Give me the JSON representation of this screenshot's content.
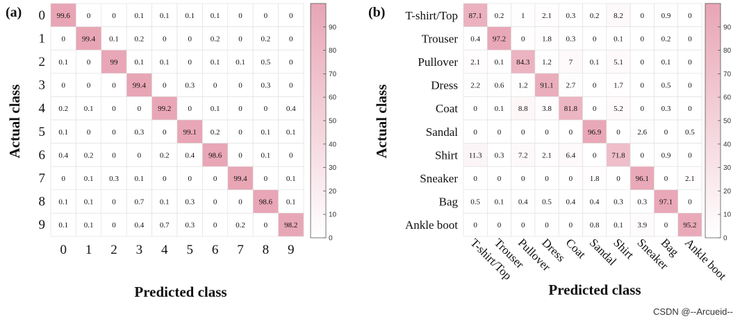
{
  "watermark": "CSDN @--Arcueid--",
  "colors": {
    "low": "#ffffff",
    "high": "#e8a5b5",
    "cell_border": "#dddddd",
    "axis": "#555555"
  },
  "chart_data": [
    {
      "type": "heatmap",
      "panel_label": "(a)",
      "xlabel": "Predicted class",
      "ylabel": "Actual class",
      "x_labels": [
        "0",
        "1",
        "2",
        "3",
        "4",
        "5",
        "6",
        "7",
        "8",
        "9"
      ],
      "y_labels": [
        "0",
        "1",
        "2",
        "3",
        "4",
        "5",
        "6",
        "7",
        "8",
        "9"
      ],
      "values": [
        [
          99.6,
          0,
          0,
          0.1,
          0.1,
          0.1,
          0.1,
          0,
          0,
          0
        ],
        [
          0,
          99.4,
          0.1,
          0.2,
          0,
          0,
          0.2,
          0,
          0.2,
          0
        ],
        [
          0.1,
          0,
          99,
          0.1,
          0.1,
          0,
          0.1,
          0.1,
          0.5,
          0
        ],
        [
          0,
          0,
          0,
          99.4,
          0,
          0.3,
          0,
          0,
          0.3,
          0
        ],
        [
          0.2,
          0.1,
          0,
          0,
          99.2,
          0,
          0.1,
          0,
          0,
          0.4
        ],
        [
          0.1,
          0,
          0,
          0.3,
          0,
          99.1,
          0.2,
          0,
          0.1,
          0.1
        ],
        [
          0.4,
          0.2,
          0,
          0,
          0.2,
          0.4,
          98.6,
          0,
          0.1,
          0
        ],
        [
          0,
          0.1,
          0.3,
          0.1,
          0,
          0,
          0,
          99.4,
          0,
          0.1
        ],
        [
          0.1,
          0.1,
          0,
          0.7,
          0.1,
          0.3,
          0,
          0,
          98.6,
          0.1
        ],
        [
          0.1,
          0.1,
          0,
          0.4,
          0.7,
          0.3,
          0,
          0.2,
          0,
          98.2
        ]
      ],
      "colorbar": {
        "range": [
          0,
          100
        ],
        "ticks": [
          0,
          10,
          20,
          30,
          40,
          50,
          60,
          70,
          80,
          90
        ]
      }
    },
    {
      "type": "heatmap",
      "panel_label": "(b)",
      "xlabel": "Predicted class",
      "ylabel": "Actual class",
      "x_labels": [
        "T-shirt/Top",
        "Trouser",
        "Pullover",
        "Dress",
        "Coat",
        "Sandal",
        "Shirt",
        "Sneaker",
        "Bag",
        "Ankle boot"
      ],
      "y_labels": [
        "T-shirt/Top",
        "Trouser",
        "Pullover",
        "Dress",
        "Coat",
        "Sandal",
        "Shirt",
        "Sneaker",
        "Bag",
        "Ankle boot"
      ],
      "values": [
        [
          87.1,
          0.2,
          1,
          2.1,
          0.3,
          0.2,
          8.2,
          0,
          0.9,
          0
        ],
        [
          0.4,
          97.2,
          0,
          1.8,
          0.3,
          0,
          0.1,
          0,
          0.2,
          0
        ],
        [
          2.1,
          0.1,
          84.3,
          1.2,
          7,
          0.1,
          5.1,
          0,
          0.1,
          0
        ],
        [
          2.2,
          0.6,
          1.2,
          91.1,
          2.7,
          0,
          1.7,
          0,
          0.5,
          0
        ],
        [
          0,
          0.1,
          8.8,
          3.8,
          81.8,
          0,
          5.2,
          0,
          0.3,
          0
        ],
        [
          0,
          0,
          0,
          0,
          0,
          96.9,
          0,
          2.6,
          0,
          0.5
        ],
        [
          11.3,
          0.3,
          7.2,
          2.1,
          6.4,
          0,
          71.8,
          0,
          0.9,
          0
        ],
        [
          0,
          0,
          0,
          0,
          0,
          1.8,
          0,
          96.1,
          0,
          2.1
        ],
        [
          0.5,
          0.1,
          0.4,
          0.5,
          0.4,
          0.4,
          0.3,
          0.3,
          97.1,
          0
        ],
        [
          0,
          0,
          0,
          0,
          0,
          0.8,
          0.1,
          3.9,
          0,
          95.2
        ]
      ],
      "colorbar": {
        "range": [
          0,
          100
        ],
        "ticks": [
          0,
          10,
          20,
          30,
          40,
          50,
          60,
          70,
          80,
          90
        ]
      }
    }
  ]
}
